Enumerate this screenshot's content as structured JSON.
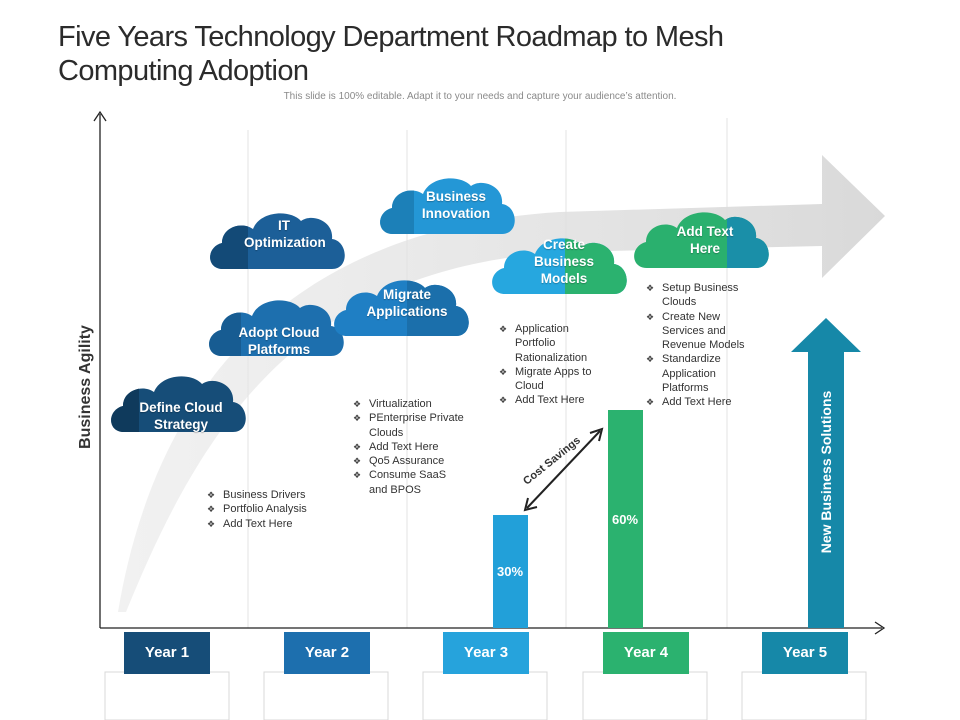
{
  "title": "Five Years Technology  Department Roadmap to Mesh Computing Adoption",
  "subtitle": "This slide is 100% editable. Adapt it to your needs and capture your audience’s attention.",
  "axis": {
    "y_label": "Business Agility"
  },
  "clouds": [
    {
      "label": "Define Cloud Strategy",
      "color": "#164d78"
    },
    {
      "label": "Adopt Cloud Platforms",
      "color": "#1d6fae"
    },
    {
      "label": "IT Optimization",
      "color": "#1c5f98"
    },
    {
      "label": "Migrate Applications",
      "color": "#1f7fc4"
    },
    {
      "label": "Business Innovation",
      "color": "#2497d6"
    },
    {
      "label": "Create Business Models",
      "color": "#26a7df"
    },
    {
      "label": "Add Text Here",
      "color": "#2ab06e"
    }
  ],
  "bullet_groups": [
    [
      "Business Drivers",
      "Portfolio Analysis",
      "Add Text Here"
    ],
    [
      "Virtualization",
      "PEnterprise Private Clouds",
      "Add Text Here",
      "Qo5 Assurance",
      "Consume SaaS and BPOS"
    ],
    [
      "Application Portfolio Rationalization",
      "Migrate Apps to Cloud",
      "Add Text Here"
    ],
    [
      "Setup Business Clouds",
      "Create New Services and Revenue Models",
      "Standardize Application Platforms",
      "Add Text Here"
    ]
  ],
  "bars": [
    {
      "label": "30%",
      "value": 30,
      "color": "#22a0d9"
    },
    {
      "label": "60%",
      "value": 60,
      "color": "#2bb26f"
    }
  ],
  "cost_savings_label": "Cost Savings",
  "new_business_solutions": {
    "label": "New Business Solutions",
    "color": "#1688a8"
  },
  "years": [
    {
      "label": "Year 1",
      "color": "#164d78"
    },
    {
      "label": "Year 2",
      "color": "#1d6fae"
    },
    {
      "label": "Year 3",
      "color": "#26a3dc"
    },
    {
      "label": "Year 4",
      "color": "#2bb26f"
    },
    {
      "label": "Year 5",
      "color": "#1688a8"
    }
  ]
}
